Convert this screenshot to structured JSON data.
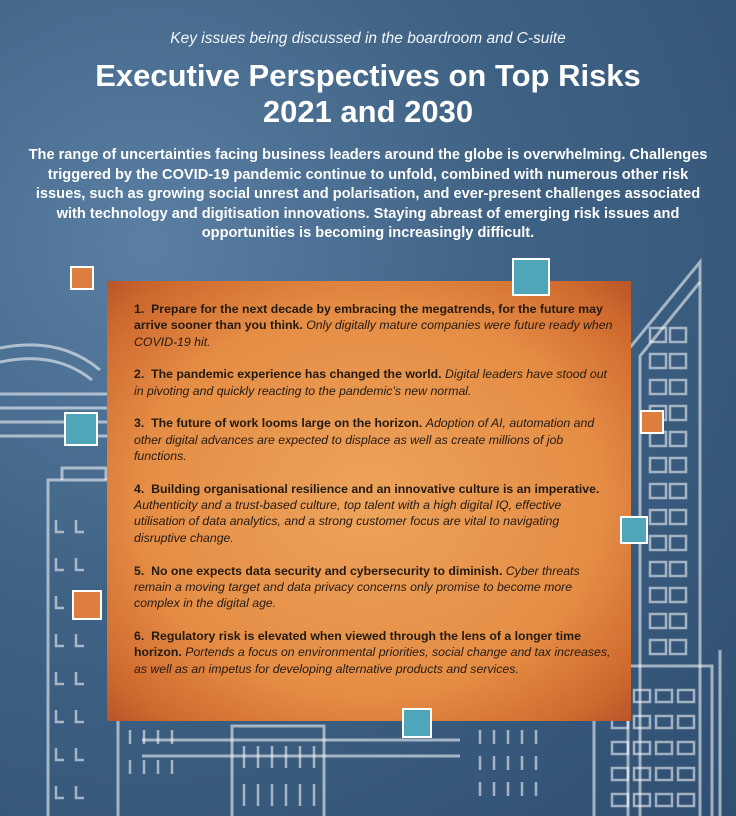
{
  "header": {
    "tagline": "Key issues being discussed in the boardroom and C-suite",
    "title_line1": "Executive Perspectives on Top Risks",
    "title_line2": "2021 and 2030",
    "intro": "The range of uncertainties facing business leaders around the globe is overwhelming. Challenges triggered by the COVID-19 pandemic continue to unfold, combined with numerous other risk issues, such as growing social unrest and polarisation, and ever-present challenges associated with technology and digitisation innovations. Staying abreast of emerging risk issues and opportunities is becoming increasingly difficult."
  },
  "items": [
    {
      "num": "1.",
      "lead": "Prepare for the next decade by embracing the megatrends, for the future may arrive sooner than you think.",
      "body": "Only digitally mature companies were future ready when COVID-19 hit."
    },
    {
      "num": "2.",
      "lead": "The pandemic experience has changed the world.",
      "body": "Digital leaders have stood out in pivoting and quickly reacting to the pandemic’s new normal."
    },
    {
      "num": "3.",
      "lead": "The future of work looms large on the horizon.",
      "body": "Adoption of AI, automation and other digital advances are expected to displace as well as create millions of job functions."
    },
    {
      "num": "4.",
      "lead": "Building organisational resilience and an innovative culture is an imperative.",
      "body": "Authenticity and a trust-based culture, top talent with a high digital IQ, effective utilisation of data analytics, and a strong customer focus are vital to navigating disruptive change."
    },
    {
      "num": "5.",
      "lead": "No one expects data security and cybersecurity to diminish.",
      "body": "Cyber threats remain a moving target and data privacy concerns only promise to become more complex in the digital age."
    },
    {
      "num": "6.",
      "lead": "Regulatory risk is elevated when viewed through the lens of a longer time horizon.",
      "body": "Portends a focus on environmental priorities, social change and tax increases, as well as an impetus for developing alternative products and services."
    }
  ],
  "colors": {
    "background": "#3f6284",
    "card_orange": "#e58d45",
    "accent_orange": "#dd7e3e",
    "accent_teal": "#4ea6b8",
    "line_white": "#ffffff"
  }
}
